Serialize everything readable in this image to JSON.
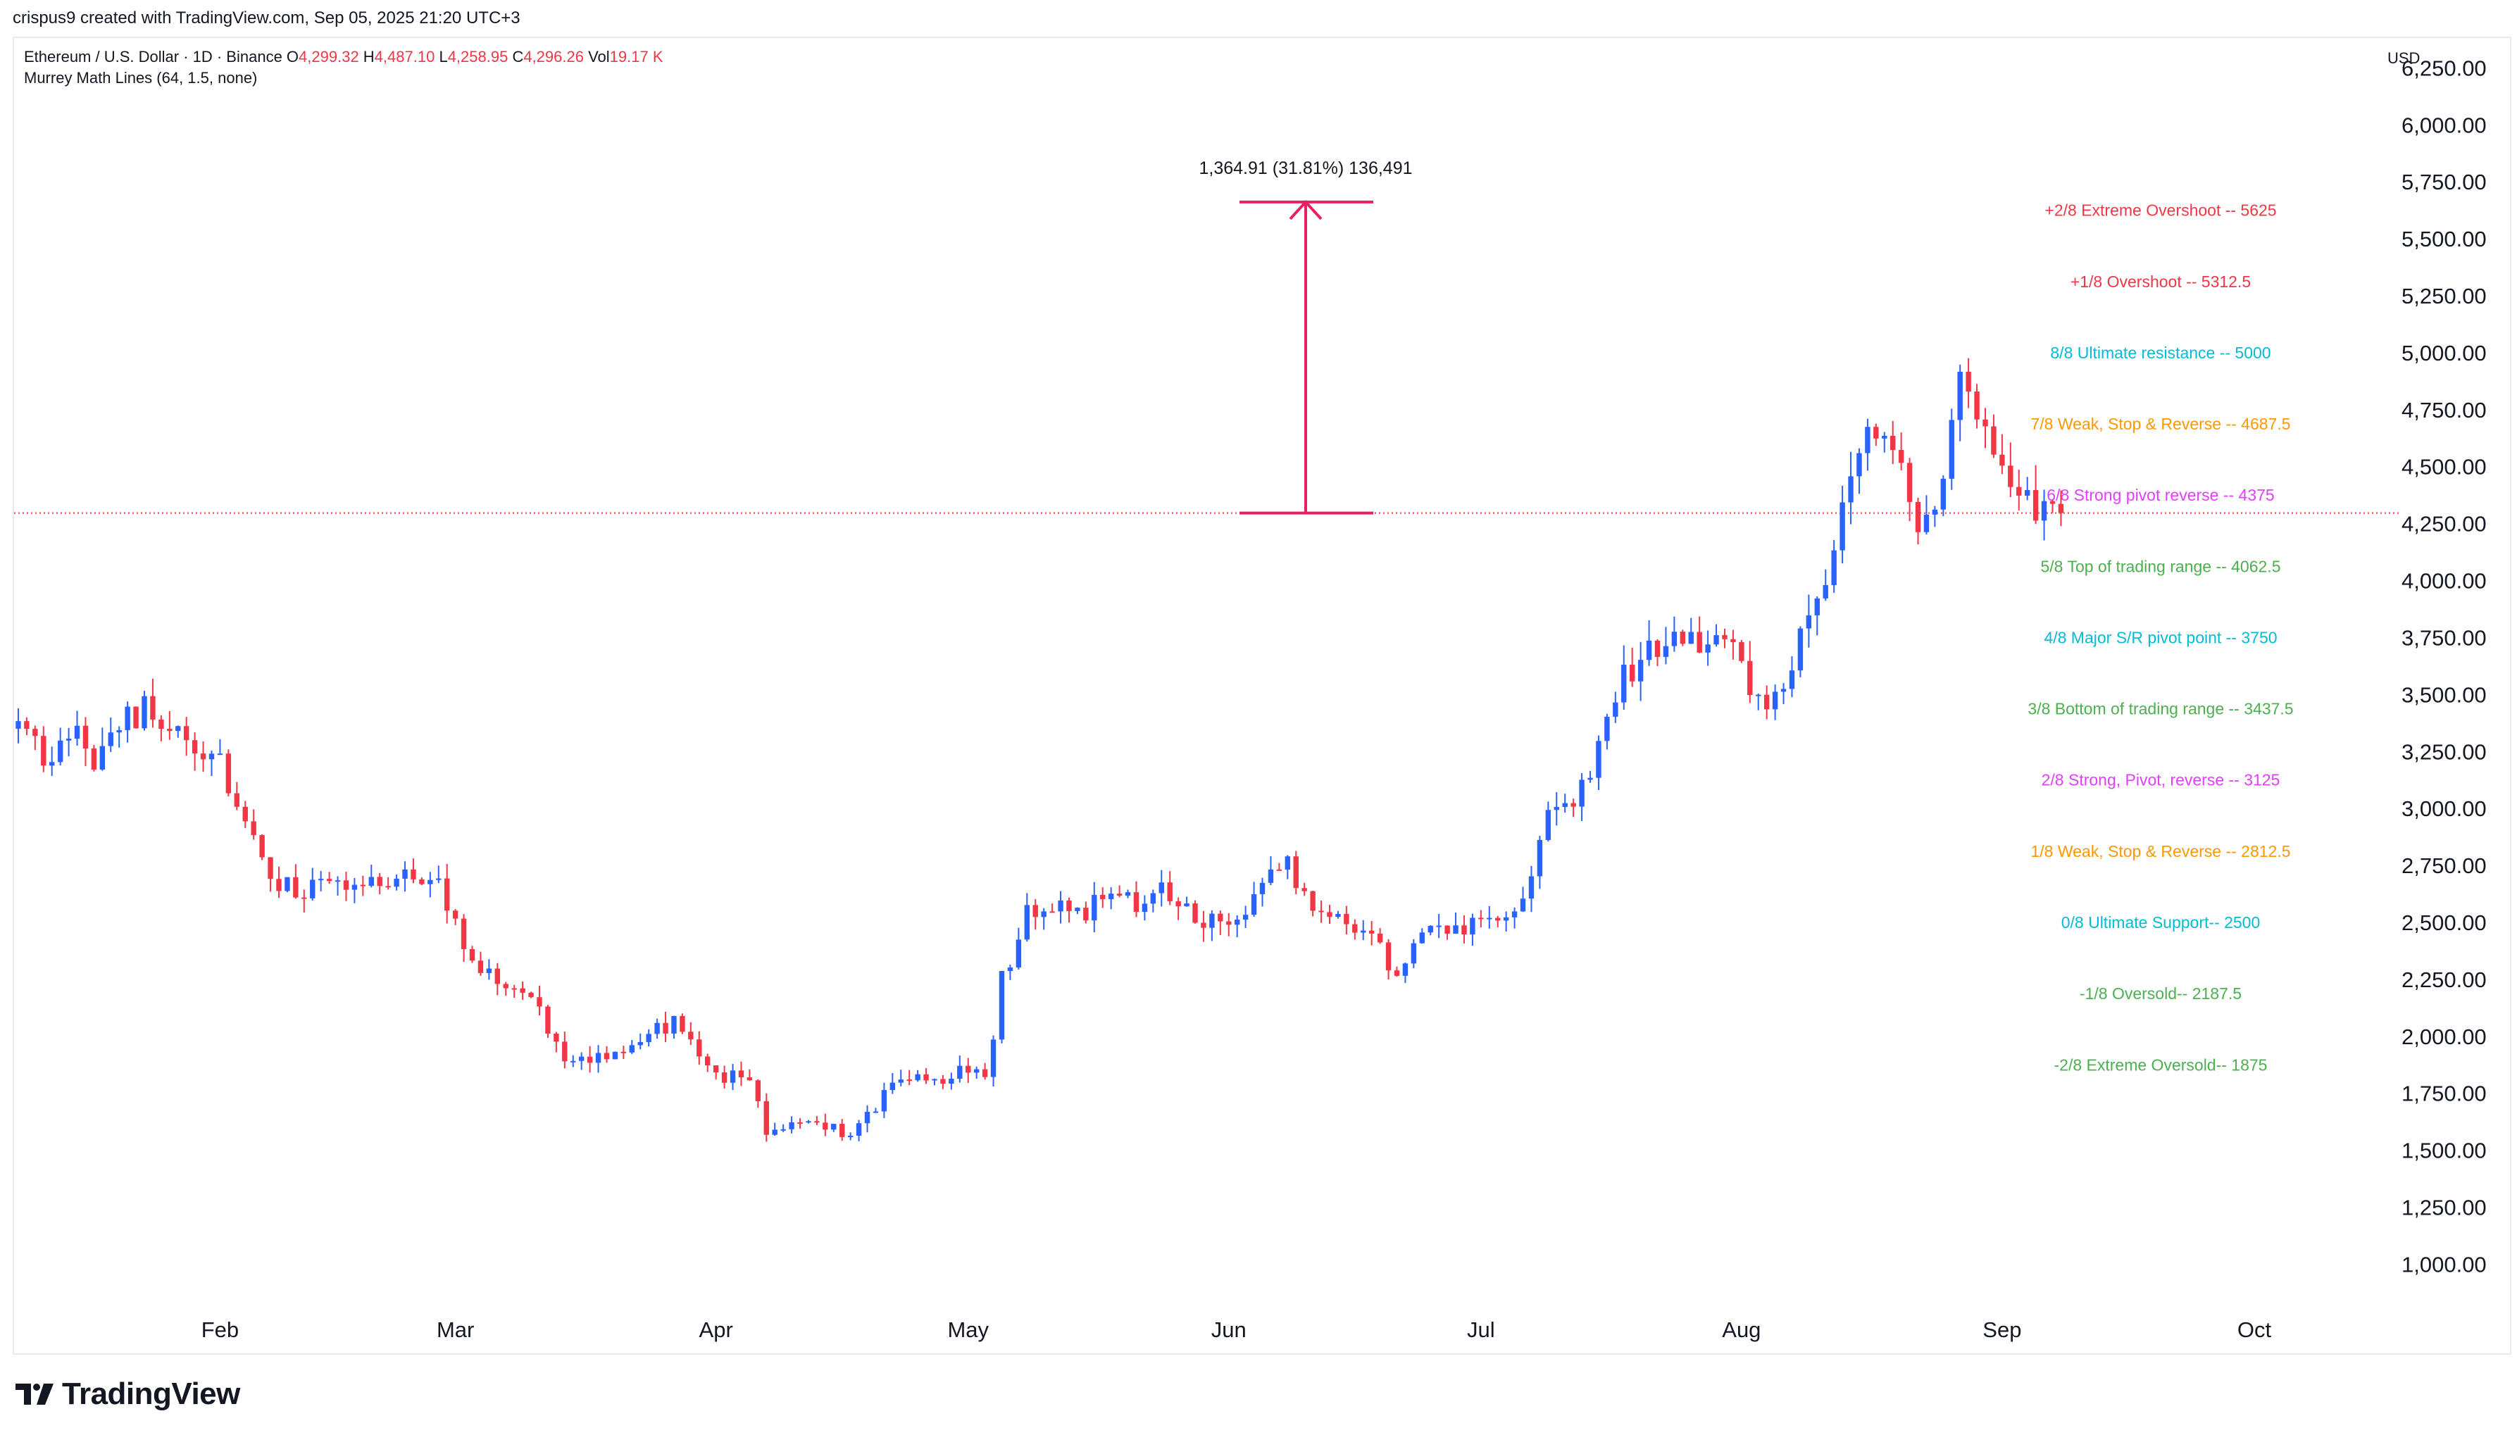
{
  "header": {
    "created_by": "crispus9 created with TradingView.com, Sep 05, 2025 21:20 UTC+3"
  },
  "legend": {
    "symbol": "Ethereum / U.S. Dollar · 1D · Binance",
    "open_label": "O",
    "open": "4,299.32",
    "high_label": "H",
    "high": "4,487.10",
    "low_label": "L",
    "low": "4,258.95",
    "close_label": "C",
    "close": "4,296.26",
    "vol_label": "Vol",
    "vol": "19.17 K",
    "indicator": "Murrey Math Lines (64, 1.5, none)"
  },
  "measure": {
    "label": "1,364.91 (31.81%) 136,491",
    "from": 4296.26,
    "to": 5661.17
  },
  "current_price": 4296.26,
  "footer": {
    "brand": "TradingView"
  },
  "colors": {
    "up": "#2962ff",
    "down": "#f23645",
    "measure": "#e91e63",
    "price_line": "#f23645",
    "axis_text": "#131722"
  },
  "chart_data": {
    "type": "candlestick",
    "currency": "USD",
    "ylim": [
      850,
      6350
    ],
    "y_ticks": [
      "1,000.00",
      "1,250.00",
      "1,500.00",
      "1,750.00",
      "2,000.00",
      "2,250.00",
      "2,500.00",
      "2,750.00",
      "3,000.00",
      "3,250.00",
      "3,500.00",
      "3,750.00",
      "4,000.00",
      "4,250.00",
      "4,500.00",
      "4,750.00",
      "5,000.00",
      "5,250.00",
      "5,500.00",
      "5,750.00",
      "6,000.00",
      "6,250.00"
    ],
    "y_tick_values": [
      1000,
      1250,
      1500,
      1750,
      2000,
      2250,
      2500,
      2750,
      3000,
      3250,
      3500,
      3750,
      4000,
      4250,
      4500,
      4750,
      5000,
      5250,
      5500,
      5750,
      6000,
      6250
    ],
    "x_ticks": [
      {
        "label": "Feb",
        "day": 31
      },
      {
        "label": "Mar",
        "day": 59
      },
      {
        "label": "Apr",
        "day": 90
      },
      {
        "label": "May",
        "day": 120
      },
      {
        "label": "Jun",
        "day": 151
      },
      {
        "label": "Jul",
        "day": 181
      },
      {
        "label": "Aug",
        "day": 212
      },
      {
        "label": "Sep",
        "day": 243
      },
      {
        "label": "Oct",
        "day": 273
      }
    ],
    "x_range_days": [
      6.5,
      288
    ],
    "murrey_lines": [
      {
        "label": "+2/8 Extreme Overshoot --  5625",
        "value": 5625,
        "color": "#f23645"
      },
      {
        "label": "+1/8 Overshoot --  5312.5",
        "value": 5312.5,
        "color": "#f23645"
      },
      {
        "label": "8/8 Ultimate resistance --  5000",
        "value": 5000,
        "color": "#00bcd4"
      },
      {
        "label": "7/8 Weak, Stop & Reverse --  4687.5",
        "value": 4687.5,
        "color": "#ff9800"
      },
      {
        "label": "6/8 Strong pivot reverse --  4375",
        "value": 4375,
        "color": "#e040fb"
      },
      {
        "label": "5/8 Top of trading range --  4062.5",
        "value": 4062.5,
        "color": "#4caf50"
      },
      {
        "label": "4/8 Major S/R pivot point --  3750",
        "value": 3750,
        "color": "#00bcd4"
      },
      {
        "label": "3/8 Bottom of trading range --  3437.5",
        "value": 3437.5,
        "color": "#4caf50"
      },
      {
        "label": "2/8 Strong, Pivot, reverse --  3125",
        "value": 3125,
        "color": "#e040fb"
      },
      {
        "label": "1/8 Weak, Stop & Reverse --  2812.5",
        "value": 2812.5,
        "color": "#ff9800"
      },
      {
        "label": "0/8 Ultimate Support--  2500",
        "value": 2500,
        "color": "#00bcd4"
      },
      {
        "label": "-1/8 Oversold--  2187.5",
        "value": 2187.5,
        "color": "#4caf50"
      },
      {
        "label": "-2/8 Extreme Oversold--  1875",
        "value": 1875,
        "color": "#4caf50"
      }
    ],
    "price_anchors": [
      [
        7,
        3350
      ],
      [
        10,
        3250
      ],
      [
        13,
        3330
      ],
      [
        16,
        3220
      ],
      [
        19,
        3380
      ],
      [
        22,
        3440
      ],
      [
        25,
        3330
      ],
      [
        28,
        3300
      ],
      [
        31,
        3230
      ],
      [
        33,
        2980
      ],
      [
        36,
        2740
      ],
      [
        40,
        2620
      ],
      [
        44,
        2650
      ],
      [
        48,
        2720
      ],
      [
        52,
        2710
      ],
      [
        56,
        2720
      ],
      [
        59,
        2480
      ],
      [
        62,
        2300
      ],
      [
        65,
        2180
      ],
      [
        68,
        2200
      ],
      [
        71,
        1950
      ],
      [
        74,
        1880
      ],
      [
        78,
        1900
      ],
      [
        82,
        2020
      ],
      [
        85,
        2050
      ],
      [
        88,
        1890
      ],
      [
        91,
        1830
      ],
      [
        94,
        1780
      ],
      [
        96,
        1580
      ],
      [
        99,
        1620
      ],
      [
        103,
        1580
      ],
      [
        107,
        1600
      ],
      [
        111,
        1790
      ],
      [
        115,
        1800
      ],
      [
        119,
        1830
      ],
      [
        122,
        1820
      ],
      [
        124,
        2240
      ],
      [
        127,
        2550
      ],
      [
        130,
        2580
      ],
      [
        133,
        2530
      ],
      [
        136,
        2600
      ],
      [
        140,
        2570
      ],
      [
        144,
        2640
      ],
      [
        147,
        2500
      ],
      [
        150,
        2480
      ],
      [
        153,
        2550
      ],
      [
        156,
        2690
      ],
      [
        158,
        2780
      ],
      [
        161,
        2560
      ],
      [
        165,
        2520
      ],
      [
        168,
        2440
      ],
      [
        171,
        2250
      ],
      [
        174,
        2430
      ],
      [
        177,
        2450
      ],
      [
        180,
        2480
      ],
      [
        183,
        2560
      ],
      [
        186,
        2600
      ],
      [
        189,
        2960
      ],
      [
        192,
        3020
      ],
      [
        195,
        3250
      ],
      [
        198,
        3570
      ],
      [
        201,
        3710
      ],
      [
        205,
        3800
      ],
      [
        208,
        3720
      ],
      [
        212,
        3640
      ],
      [
        215,
        3430
      ],
      [
        218,
        3610
      ],
      [
        221,
        3920
      ],
      [
        224,
        4290
      ],
      [
        227,
        4650
      ],
      [
        230,
        4480
      ],
      [
        233,
        4300
      ],
      [
        236,
        4430
      ],
      [
        238,
        4850
      ],
      [
        240,
        4650
      ],
      [
        243,
        4450
      ],
      [
        245,
        4370
      ],
      [
        248,
        4310
      ],
      [
        250,
        4296
      ]
    ],
    "range": {
      "min_low": 1385,
      "max_high": 4955,
      "min_day": 96,
      "max_day": 238
    }
  }
}
